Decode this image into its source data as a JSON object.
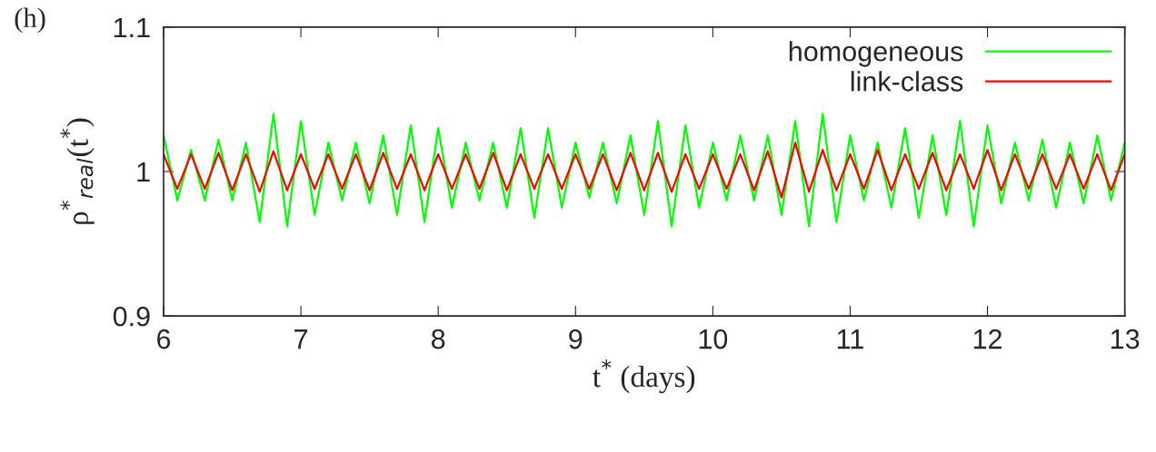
{
  "chart_data": {
    "type": "line",
    "title": "(h)",
    "xlabel": "t$^{*}$ (days)",
    "ylabel": "ρ$^{*}$$_{real}$(t$^{*}$)",
    "x": [
      6.0,
      6.1,
      6.2,
      6.3,
      6.4,
      6.5,
      6.6,
      6.7,
      6.8,
      6.9,
      7.0,
      7.1,
      7.2,
      7.3,
      7.4,
      7.5,
      7.6,
      7.7,
      7.8,
      7.9,
      8.0,
      8.1,
      8.2,
      8.3,
      8.4,
      8.5,
      8.6,
      8.7,
      8.8,
      8.9,
      9.0,
      9.1,
      9.2,
      9.3,
      9.4,
      9.5,
      9.6,
      9.7,
      9.8,
      9.9,
      10.0,
      10.1,
      10.2,
      10.3,
      10.4,
      10.5,
      10.6,
      10.7,
      10.8,
      10.9,
      11.0,
      11.1,
      11.2,
      11.3,
      11.4,
      11.5,
      11.6,
      11.7,
      11.8,
      11.9,
      12.0,
      12.1,
      12.2,
      12.3,
      12.4,
      12.5,
      12.6,
      12.7,
      12.8,
      12.9,
      13.0
    ],
    "series": [
      {
        "name": "homogeneous",
        "color": "#00ff00",
        "values": [
          1.025,
          0.98,
          1.015,
          0.98,
          1.022,
          0.98,
          1.02,
          0.965,
          1.04,
          0.962,
          1.035,
          0.97,
          1.02,
          0.98,
          1.02,
          0.978,
          1.025,
          0.97,
          1.032,
          0.965,
          1.03,
          0.975,
          1.02,
          0.98,
          1.02,
          0.975,
          1.03,
          0.968,
          1.03,
          0.975,
          1.02,
          0.982,
          1.02,
          0.978,
          1.025,
          0.97,
          1.035,
          0.962,
          1.032,
          0.975,
          1.02,
          0.98,
          1.025,
          0.98,
          1.025,
          0.97,
          1.035,
          0.962,
          1.04,
          0.965,
          1.025,
          0.98,
          1.02,
          0.975,
          1.03,
          0.968,
          1.025,
          0.97,
          1.035,
          0.962,
          1.032,
          0.978,
          1.02,
          0.98,
          1.022,
          0.975,
          1.02,
          0.978,
          1.025,
          0.98,
          1.02
        ]
      },
      {
        "name": "link-class",
        "color": "#ff0000",
        "values": [
          1.012,
          0.988,
          1.012,
          0.988,
          1.013,
          0.987,
          1.012,
          0.986,
          1.014,
          0.987,
          1.012,
          0.988,
          1.012,
          0.988,
          1.012,
          0.987,
          1.013,
          0.988,
          1.012,
          0.987,
          1.012,
          0.988,
          1.012,
          0.988,
          1.013,
          0.987,
          1.012,
          0.988,
          1.012,
          0.988,
          1.012,
          0.988,
          1.012,
          0.987,
          1.013,
          0.987,
          1.013,
          0.986,
          1.012,
          0.988,
          1.012,
          0.988,
          1.012,
          0.987,
          1.014,
          0.982,
          1.02,
          0.986,
          1.015,
          0.987,
          1.012,
          0.988,
          1.015,
          0.987,
          1.012,
          0.988,
          1.013,
          0.987,
          1.012,
          0.988,
          1.015,
          0.987,
          1.012,
          0.988,
          1.012,
          0.988,
          1.012,
          0.988,
          1.012,
          0.987,
          1.012
        ]
      }
    ],
    "xlim": [
      6,
      13
    ],
    "xticks": [
      6,
      7,
      8,
      9,
      10,
      11,
      12,
      13
    ],
    "ylim": [
      0.9,
      1.1
    ],
    "yticks": [
      {
        "value": 0.9,
        "label": "0.9"
      },
      {
        "value": 1,
        "label": "1"
      },
      {
        "value": 1.1,
        "label": "1.1"
      }
    ],
    "grid": false,
    "legend": "top right",
    "marker": "none",
    "line_style": "solid"
  }
}
